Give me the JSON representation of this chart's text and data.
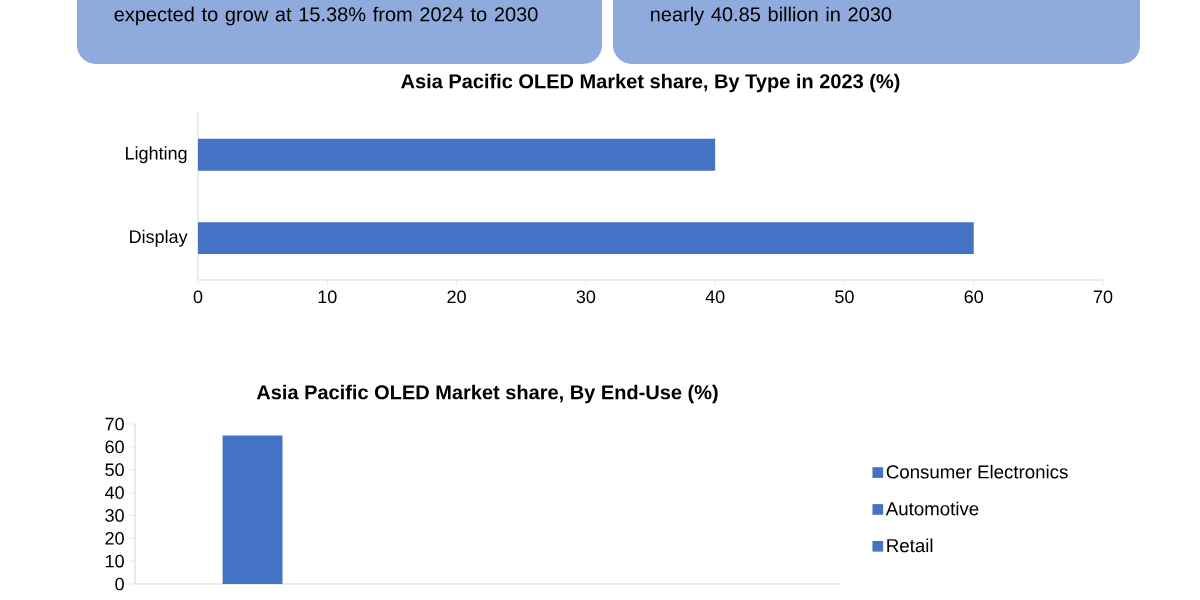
{
  "chart_data": [
    {
      "type": "other",
      "annotations": [
        "expected to grow at 15.38% from 2024 to 2030",
        "nearly 40.85 billion in 2030"
      ]
    },
    {
      "type": "bar",
      "orientation": "horizontal",
      "title": "Asia Pacific OLED Market share,  By Type  in 2023  (%)",
      "categories": [
        "Lighting",
        "Display"
      ],
      "values": [
        40,
        60
      ],
      "color": "#4472c4",
      "xlim": [
        0,
        70
      ],
      "xticks": [
        0,
        10,
        20,
        30,
        40,
        50,
        60,
        70
      ]
    },
    {
      "type": "bar",
      "title": "Asia Pacific OLED Market share, By End-Use (%)",
      "categories": [
        null,
        null,
        null
      ],
      "legend": "right",
      "ylim": [
        0,
        70
      ],
      "yticks": [
        0,
        10,
        20,
        30,
        40,
        50,
        60,
        70
      ],
      "series": [
        {
          "name": "Consumer Electronics",
          "color": "#4472c4",
          "values": [
            65,
            null,
            null
          ]
        },
        {
          "name": "Automotive",
          "color": "#4472c4",
          "values": [
            null,
            null,
            null
          ]
        },
        {
          "name": "Retail",
          "color": "#4472c4",
          "values": [
            null,
            null,
            null
          ]
        }
      ]
    }
  ]
}
